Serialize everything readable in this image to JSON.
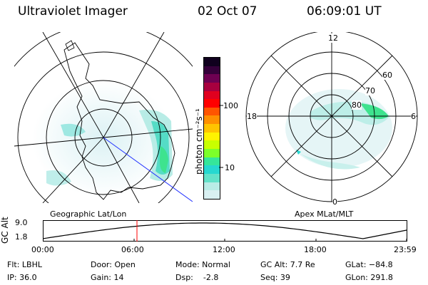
{
  "header": {
    "instrument": "Ultraviolet Imager",
    "date": "02 Oct 07",
    "time": "06:09:01 UT"
  },
  "colorbar": {
    "label": "photon cm⁻²s⁻¹",
    "ticks": [
      "100",
      "10"
    ],
    "colors": [
      "#d9f0f2",
      "#b9ece6",
      "#62e2c9",
      "#26d8d0",
      "#35e69a",
      "#7cff2a",
      "#c8ff00",
      "#fff300",
      "#ffc400",
      "#ff9000",
      "#ff5500",
      "#ff0000",
      "#e0001f",
      "#a8003f",
      "#6e0052",
      "#35003a",
      "#10001e"
    ]
  },
  "left_map": {
    "caption": "Geographic Lat/Lon"
  },
  "right_map": {
    "caption": "Apex MLat/MLT",
    "mlt_labels": {
      "top": "12",
      "left": "18",
      "right": "6",
      "bottom": "0"
    },
    "lat_labels": [
      "60",
      "70",
      "80"
    ]
  },
  "altitude_plot": {
    "ylabel": "GC Alt",
    "yticks": [
      "9.0",
      "1.8"
    ],
    "xticks": [
      "00:00",
      "06:00",
      "12:00",
      "18:00",
      "23:59"
    ]
  },
  "info": {
    "flt": "Flt: LBHL",
    "ip": "IP: 36.0",
    "door": "Door: Open",
    "gain": "Gain: 14",
    "mode": "Mode: Normal",
    "dsp": "Dsp:    -2.8",
    "gcalt": "GC Alt: 7.7 Re",
    "seq": "Seq: 39",
    "glat": "GLat: −84.8",
    "glon": "GLon: 291.8"
  }
}
